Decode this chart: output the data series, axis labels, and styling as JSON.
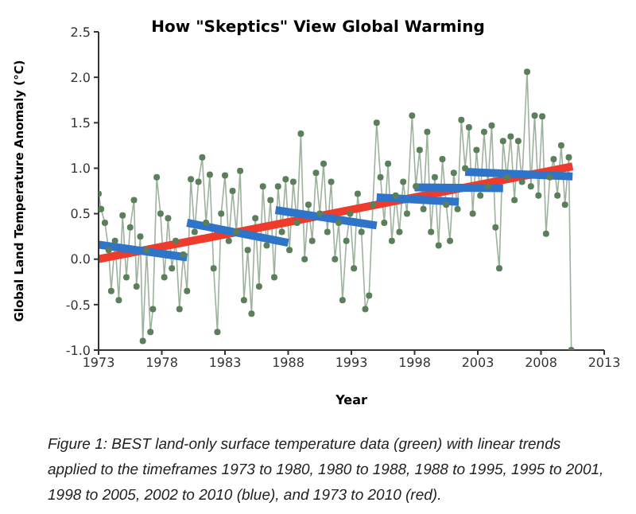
{
  "chart_data": {
    "type": "line",
    "title": "How \"Skeptics\" View Global Warming",
    "xlabel": "Year",
    "ylabel": "Global Land Temperature Anomaly (°C)",
    "annotations": [
      "Figure 1: BEST land-only surface temperature data (green) with linear trends applied to the timeframes 1973 to 1980, 1980 to 1988, 1988 to 1995, 1995 to 2001, 1998 to 2005, 2002 to 2010 (blue), and 1973 to 2010 (red)."
    ],
    "xlim": [
      1973,
      2013
    ],
    "xticks": [
      1973,
      1978,
      1983,
      1988,
      1993,
      1998,
      2003,
      2008,
      2013
    ],
    "ylim": [
      -1,
      2.5
    ],
    "yticks": [
      {
        "value": -1,
        "label": "-1.0"
      },
      {
        "value": -0.5,
        "label": "-0.5"
      },
      {
        "value": 0,
        "label": "0.0"
      },
      {
        "value": 0.5,
        "label": "0.5"
      },
      {
        "value": 1,
        "label": "1.0"
      },
      {
        "value": 1.5,
        "label": "1.5"
      },
      {
        "value": 2,
        "label": "2.0"
      },
      {
        "value": 2.5,
        "label": "2.5"
      }
    ],
    "grid": false,
    "series": [
      {
        "color": "#5b7f5b",
        "marker": "circle",
        "x": [
          1973.0,
          1973.2,
          1973.5,
          1973.8,
          1974.0,
          1974.3,
          1974.6,
          1974.9,
          1975.2,
          1975.5,
          1975.8,
          1976.0,
          1976.3,
          1976.5,
          1976.8,
          1977.1,
          1977.3,
          1977.6,
          1977.9,
          1978.2,
          1978.5,
          1978.8,
          1979.1,
          1979.4,
          1979.7,
          1980.0,
          1980.3,
          1980.6,
          1980.9,
          1981.2,
          1981.5,
          1981.8,
          1982.1,
          1982.4,
          1982.7,
          1983.0,
          1983.3,
          1983.6,
          1983.9,
          1984.2,
          1984.5,
          1984.8,
          1985.1,
          1985.4,
          1985.7,
          1986.0,
          1986.3,
          1986.6,
          1986.9,
          1987.2,
          1987.5,
          1987.8,
          1988.1,
          1988.4,
          1988.7,
          1989.0,
          1989.3,
          1989.6,
          1989.9,
          1990.2,
          1990.5,
          1990.8,
          1991.1,
          1991.4,
          1991.7,
          1992.0,
          1992.3,
          1992.6,
          1992.9,
          1993.2,
          1993.5,
          1993.8,
          1994.1,
          1994.4,
          1994.7,
          1995.0,
          1995.3,
          1995.6,
          1995.9,
          1996.2,
          1996.5,
          1996.8,
          1997.1,
          1997.4,
          1997.8,
          1998.1,
          1998.4,
          1998.7,
          1999.0,
          1999.3,
          1999.6,
          1999.9,
          2000.2,
          2000.5,
          2000.8,
          2001.1,
          2001.4,
          2001.7,
          2002.0,
          2002.3,
          2002.6,
          2002.9,
          2003.2,
          2003.5,
          2003.8,
          2004.1,
          2004.4,
          2004.7,
          2005.0,
          2005.3,
          2005.6,
          2005.9,
          2006.2,
          2006.5,
          2006.9,
          2007.2,
          2007.5,
          2007.8,
          2008.1,
          2008.4,
          2008.7,
          2009.0,
          2009.3,
          2009.6,
          2009.9,
          2010.2,
          2010.4
        ],
        "values": [
          0.72,
          0.55,
          0.4,
          0.1,
          -0.35,
          0.2,
          -0.45,
          0.48,
          -0.2,
          0.35,
          0.65,
          -0.3,
          0.25,
          -0.9,
          0.1,
          -0.8,
          -0.55,
          0.9,
          0.5,
          -0.2,
          0.45,
          -0.1,
          0.2,
          -0.55,
          0.05,
          -0.35,
          0.88,
          0.3,
          0.85,
          1.12,
          0.4,
          0.93,
          -0.1,
          -0.8,
          0.5,
          0.92,
          0.2,
          0.75,
          0.3,
          0.97,
          -0.45,
          0.1,
          -0.6,
          0.45,
          -0.3,
          0.8,
          0.15,
          0.65,
          -0.2,
          0.8,
          0.3,
          0.88,
          0.1,
          0.85,
          0.4,
          1.38,
          0.0,
          0.6,
          0.2,
          0.95,
          0.5,
          1.05,
          0.3,
          0.85,
          0.0,
          0.4,
          -0.45,
          0.2,
          0.5,
          -0.1,
          0.72,
          0.3,
          -0.55,
          -0.4,
          0.6,
          1.5,
          0.9,
          0.4,
          1.05,
          0.2,
          0.7,
          0.3,
          0.85,
          0.5,
          1.58,
          0.8,
          1.2,
          0.55,
          1.4,
          0.3,
          0.9,
          0.15,
          1.1,
          0.6,
          0.2,
          0.95,
          0.55,
          1.53,
          1.0,
          1.45,
          0.5,
          1.2,
          0.7,
          1.4,
          0.8,
          1.47,
          0.35,
          -0.1,
          1.3,
          0.9,
          1.35,
          0.65,
          1.3,
          0.85,
          2.06,
          0.8,
          1.58,
          0.7,
          1.57,
          0.28,
          0.9,
          1.1,
          0.7,
          1.25,
          0.6,
          1.12,
          -1.0
        ]
      },
      {
        "color": "#ef3b2c",
        "marker": "none",
        "x": [
          1973,
          2010.5
        ],
        "values": [
          0.0,
          1.02
        ]
      },
      {
        "color": "#2e75c9",
        "marker": "none",
        "x": [
          1973,
          1980
        ],
        "values": [
          0.16,
          0.02
        ]
      },
      {
        "color": "#2e75c9",
        "marker": "none",
        "x": [
          1980,
          1988
        ],
        "values": [
          0.4,
          0.18
        ]
      },
      {
        "color": "#2e75c9",
        "marker": "none",
        "x": [
          1987,
          1995
        ],
        "values": [
          0.54,
          0.37
        ]
      },
      {
        "color": "#2e75c9",
        "marker": "none",
        "x": [
          1995,
          2001.5
        ],
        "values": [
          0.68,
          0.63
        ]
      },
      {
        "color": "#2e75c9",
        "marker": "none",
        "x": [
          1998,
          2005
        ],
        "values": [
          0.79,
          0.78
        ]
      },
      {
        "color": "#2e75c9",
        "marker": "none",
        "x": [
          2002,
          2010.5
        ],
        "values": [
          0.96,
          0.91
        ]
      }
    ]
  }
}
